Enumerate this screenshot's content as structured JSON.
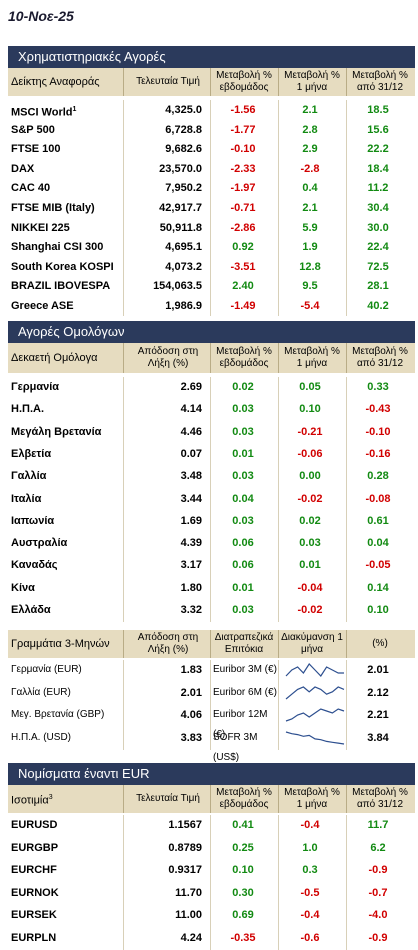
{
  "date": "10-Νοε-25",
  "stocks": {
    "title": "Χρηματιστηριακές Αγορές",
    "headers": [
      "Δείκτης Αναφοράς",
      "Τελευταία Τιμή",
      "Μεταβολή % εβδομάδος",
      "Μεταβολή % 1 μήνα",
      "Μεταβολή % από 31/12"
    ],
    "rows": [
      {
        "name": "MSCI World",
        "sup": "1",
        "last": "4,325.0",
        "w": "-1.56",
        "m": "2.1",
        "y": "18.5"
      },
      {
        "name": "S&P 500",
        "sup": "",
        "last": "6,728.8",
        "w": "-1.77",
        "m": "2.8",
        "y": "15.6"
      },
      {
        "name": "FTSE 100",
        "sup": "",
        "last": "9,682.6",
        "w": "-0.10",
        "m": "2.9",
        "y": "22.2"
      },
      {
        "name": "DAX",
        "sup": "",
        "last": "23,570.0",
        "w": "-2.33",
        "m": "-2.8",
        "y": "18.4"
      },
      {
        "name": "CAC 40",
        "sup": "",
        "last": "7,950.2",
        "w": "-1.97",
        "m": "0.4",
        "y": "11.2"
      },
      {
        "name": "FTSE MIB (Italy)",
        "sup": "",
        "last": "42,917.7",
        "w": "-0.71",
        "m": "2.1",
        "y": "30.4"
      },
      {
        "name": "NIKKEI 225",
        "sup": "",
        "last": "50,911.8",
        "w": "-2.86",
        "m": "5.9",
        "y": "30.0"
      },
      {
        "name": "Shanghai CSI 300",
        "sup": "",
        "last": "4,695.1",
        "w": "0.92",
        "m": "1.9",
        "y": "22.4"
      },
      {
        "name": "South Korea KOSPI",
        "sup": "",
        "last": "4,073.2",
        "w": "-3.51",
        "m": "12.8",
        "y": "72.5"
      },
      {
        "name": "BRAZIL IBOVESPA",
        "sup": "",
        "last": "154,063.5",
        "w": "2.40",
        "m": "9.5",
        "y": "28.1"
      },
      {
        "name": "Greece ASE",
        "sup": "",
        "last": "1,986.9",
        "w": "-1.49",
        "m": "-5.4",
        "y": "40.2"
      }
    ]
  },
  "bonds": {
    "title": "Αγορές Ομολόγων",
    "headers": [
      "Δεκαετή Ομόλογα",
      "Απόδοση στη Λήξη (%)",
      "Μεταβολή % εβδομάδος",
      "Μεταβολή % 1 μήνα",
      "Μεταβολή % από 31/12"
    ],
    "rows": [
      {
        "name": "Γερμανία",
        "last": "2.69",
        "w": "0.02",
        "m": "0.05",
        "y": "0.33"
      },
      {
        "name": "Η.Π.Α.",
        "last": "4.14",
        "w": "0.03",
        "m": "0.10",
        "y": "-0.43"
      },
      {
        "name": "Μεγάλη Βρετανία",
        "last": "4.46",
        "w": "0.03",
        "m": "-0.21",
        "y": "-0.10"
      },
      {
        "name": "Ελβετία",
        "last": "0.07",
        "w": "0.01",
        "m": "-0.06",
        "y": "-0.16"
      },
      {
        "name": "Γαλλία",
        "last": "3.48",
        "w": "0.03",
        "m": "0.00",
        "y": "0.28"
      },
      {
        "name": "Ιταλία",
        "last": "3.44",
        "w": "0.04",
        "m": "-0.02",
        "y": "-0.08"
      },
      {
        "name": "Ιαπωνία",
        "last": "1.69",
        "w": "0.03",
        "m": "0.02",
        "y": "0.61"
      },
      {
        "name": "Αυστραλία",
        "last": "4.39",
        "w": "0.06",
        "m": "0.03",
        "y": "0.04"
      },
      {
        "name": "Καναδάς",
        "last": "3.17",
        "w": "0.06",
        "m": "0.01",
        "y": "-0.05"
      },
      {
        "name": "Κίνα",
        "last": "1.80",
        "w": "0.01",
        "m": "-0.04",
        "y": "0.14"
      },
      {
        "name": "Ελλάδα",
        "last": "3.32",
        "w": "0.03",
        "m": "-0.02",
        "y": "0.10"
      }
    ]
  },
  "bills": {
    "headers": [
      "Γραμμάτια 3-Μηνών",
      "Απόδοση στη Λήξη (%)",
      "Διατραπεζικά Επιτόκια",
      "Διακύμανση 1 μήνα",
      "(%)"
    ],
    "rows": [
      {
        "name": "Γερμανία (EUR)",
        "last": "1.83",
        "rate_name": "Euribor 3M (€)",
        "rate": "2.01",
        "spark": [
          2.0,
          2.02,
          2.03,
          2.01,
          2.04,
          2.02,
          2.0,
          2.03,
          2.02,
          2.01,
          2.01
        ]
      },
      {
        "name": "Γαλλία (EUR)",
        "last": "2.01",
        "rate_name": "Euribor 6M (€)",
        "rate": "2.12",
        "spark": [
          2.08,
          2.1,
          2.12,
          2.13,
          2.11,
          2.13,
          2.12,
          2.1,
          2.11,
          2.13,
          2.12
        ]
      },
      {
        "name": "Μεγ. Βρετανία (GBP)",
        "last": "4.06",
        "rate_name": "Euribor 12M (€)",
        "rate": "2.21",
        "spark": [
          2.16,
          2.17,
          2.19,
          2.2,
          2.18,
          2.2,
          2.22,
          2.21,
          2.2,
          2.22,
          2.21
        ]
      },
      {
        "name": "Η.Π.Α. (USD)",
        "last": "3.83",
        "rate_name": "SOFR 3M (US$)",
        "rate": "3.84",
        "spark": [
          3.98,
          3.96,
          3.95,
          3.93,
          3.94,
          3.9,
          3.89,
          3.87,
          3.86,
          3.85,
          3.84
        ]
      }
    ]
  },
  "fx": {
    "title": "Νομίσματα έναντι EUR",
    "headers": [
      "Ισοτιμία",
      "Τελευταία Τιμή",
      "Μεταβολή % εβδομάδος",
      "Μεταβολή % 1 μήνα",
      "Μεταβολή % από 31/12"
    ],
    "header_sup": "3",
    "rows": [
      {
        "name": "EURUSD",
        "last": "1.1567",
        "w": "0.41",
        "m": "-0.4",
        "y": "11.7"
      },
      {
        "name": "EURGBP",
        "last": "0.8789",
        "w": "0.25",
        "m": "1.0",
        "y": "6.2"
      },
      {
        "name": "EURCHF",
        "last": "0.9317",
        "w": "0.10",
        "m": "0.3",
        "y": "-0.9"
      },
      {
        "name": "EURNOK",
        "last": "11.70",
        "w": "0.30",
        "m": "-0.5",
        "y": "-0.7"
      },
      {
        "name": "EURSEK",
        "last": "11.00",
        "w": "0.69",
        "m": "-0.4",
        "y": "-4.0"
      },
      {
        "name": "EURPLN",
        "last": "4.24",
        "w": "-0.35",
        "m": "-0.6",
        "y": "-0.9"
      }
    ]
  },
  "colors": {
    "band": "#2b3a5c",
    "header": "#e6dcc0",
    "neg": "#d10000",
    "pos": "#128a12"
  }
}
